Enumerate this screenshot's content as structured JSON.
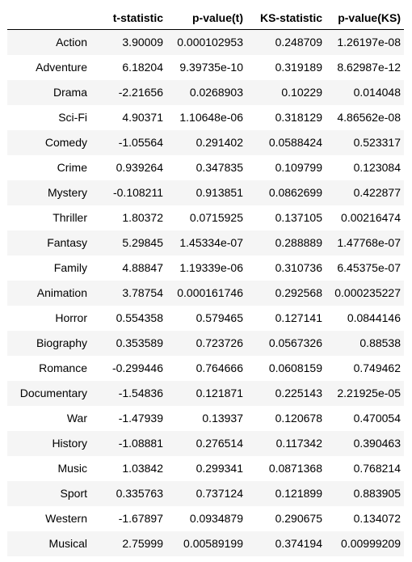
{
  "table": {
    "index_header": "",
    "columns": [
      "t-statistic",
      "p-value(t)",
      "KS-statistic",
      "p-value(KS)"
    ],
    "rows": [
      {
        "genre": "Action",
        "t_statistic": "3.90009",
        "p_value_t": "0.000102953",
        "ks_statistic": "0.248709",
        "p_value_ks": "1.26197e-08"
      },
      {
        "genre": "Adventure",
        "t_statistic": "6.18204",
        "p_value_t": "9.39735e-10",
        "ks_statistic": "0.319189",
        "p_value_ks": "8.62987e-12"
      },
      {
        "genre": "Drama",
        "t_statistic": "-2.21656",
        "p_value_t": "0.0268903",
        "ks_statistic": "0.10229",
        "p_value_ks": "0.014048"
      },
      {
        "genre": "Sci-Fi",
        "t_statistic": "4.90371",
        "p_value_t": "1.10648e-06",
        "ks_statistic": "0.318129",
        "p_value_ks": "4.86562e-08"
      },
      {
        "genre": "Comedy",
        "t_statistic": "-1.05564",
        "p_value_t": "0.291402",
        "ks_statistic": "0.0588424",
        "p_value_ks": "0.523317"
      },
      {
        "genre": "Crime",
        "t_statistic": "0.939264",
        "p_value_t": "0.347835",
        "ks_statistic": "0.109799",
        "p_value_ks": "0.123084"
      },
      {
        "genre": "Mystery",
        "t_statistic": "-0.108211",
        "p_value_t": "0.913851",
        "ks_statistic": "0.0862699",
        "p_value_ks": "0.422877"
      },
      {
        "genre": "Thriller",
        "t_statistic": "1.80372",
        "p_value_t": "0.0715925",
        "ks_statistic": "0.137105",
        "p_value_ks": "0.00216474"
      },
      {
        "genre": "Fantasy",
        "t_statistic": "5.29845",
        "p_value_t": "1.45334e-07",
        "ks_statistic": "0.288889",
        "p_value_ks": "1.47768e-07"
      },
      {
        "genre": "Family",
        "t_statistic": "4.88847",
        "p_value_t": "1.19339e-06",
        "ks_statistic": "0.310736",
        "p_value_ks": "6.45375e-07"
      },
      {
        "genre": "Animation",
        "t_statistic": "3.78754",
        "p_value_t": "0.000161746",
        "ks_statistic": "0.292568",
        "p_value_ks": "0.000235227"
      },
      {
        "genre": "Horror",
        "t_statistic": "0.554358",
        "p_value_t": "0.579465",
        "ks_statistic": "0.127141",
        "p_value_ks": "0.0844146"
      },
      {
        "genre": "Biography",
        "t_statistic": "0.353589",
        "p_value_t": "0.723726",
        "ks_statistic": "0.0567326",
        "p_value_ks": "0.88538"
      },
      {
        "genre": "Romance",
        "t_statistic": "-0.299446",
        "p_value_t": "0.764666",
        "ks_statistic": "0.0608159",
        "p_value_ks": "0.749462"
      },
      {
        "genre": "Documentary",
        "t_statistic": "-1.54836",
        "p_value_t": "0.121871",
        "ks_statistic": "0.225143",
        "p_value_ks": "2.21925e-05"
      },
      {
        "genre": "War",
        "t_statistic": "-1.47939",
        "p_value_t": "0.13937",
        "ks_statistic": "0.120678",
        "p_value_ks": "0.470054"
      },
      {
        "genre": "History",
        "t_statistic": "-1.08881",
        "p_value_t": "0.276514",
        "ks_statistic": "0.117342",
        "p_value_ks": "0.390463"
      },
      {
        "genre": "Music",
        "t_statistic": "1.03842",
        "p_value_t": "0.299341",
        "ks_statistic": "0.0871368",
        "p_value_ks": "0.768214"
      },
      {
        "genre": "Sport",
        "t_statistic": "0.335763",
        "p_value_t": "0.737124",
        "ks_statistic": "0.121899",
        "p_value_ks": "0.883905"
      },
      {
        "genre": "Western",
        "t_statistic": "-1.67897",
        "p_value_t": "0.0934879",
        "ks_statistic": "0.290675",
        "p_value_ks": "0.134072"
      },
      {
        "genre": "Musical",
        "t_statistic": "2.75999",
        "p_value_t": "0.00589199",
        "ks_statistic": "0.374194",
        "p_value_ks": "0.00999209"
      }
    ]
  },
  "colors": {
    "stripe": "#f5f5f5",
    "background": "#ffffff",
    "text": "#000000"
  }
}
